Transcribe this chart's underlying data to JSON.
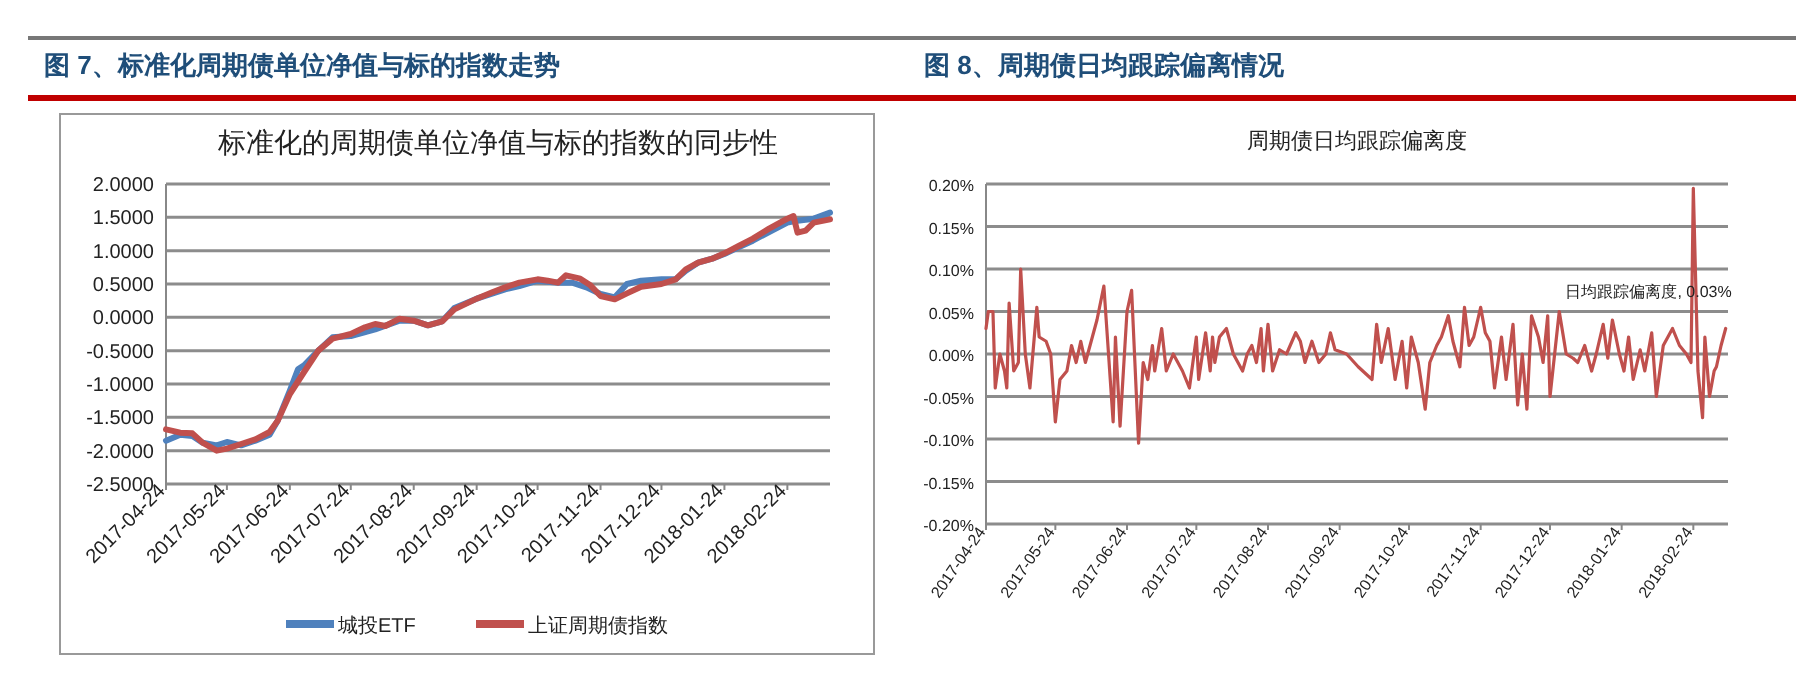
{
  "chart_data": [
    {
      "type": "line",
      "title": "图 7、标准化周期债单位净值与标的指数走势",
      "subtitle": "标准化的周期债单位净值与标的指数的同步性",
      "xlim": [
        "2017-04-24",
        "2018-03-17"
      ],
      "ylim": [
        -2.5,
        2.0
      ],
      "xticks": [
        "2017-04-24",
        "2017-05-24",
        "2017-06-24",
        "2017-07-24",
        "2017-08-24",
        "2017-09-24",
        "2017-10-24",
        "2017-11-24",
        "2017-12-24",
        "2018-01-24",
        "2018-02-24"
      ],
      "yticks": [
        {
          "value": 2.0,
          "label": "2.0000"
        },
        {
          "value": 1.5,
          "label": "1.5000"
        },
        {
          "value": 1.0,
          "label": "1.0000"
        },
        {
          "value": 0.5,
          "label": "0.5000"
        },
        {
          "value": 0,
          "label": "0.0000"
        },
        {
          "value": -0.5,
          "label": "-0.5000"
        },
        {
          "value": -1.0,
          "label": "-1.0000"
        },
        {
          "value": -1.5,
          "label": "-1.5000"
        },
        {
          "value": -2.0,
          "label": "-2.0000"
        },
        {
          "value": -2.5,
          "label": "-2.5000"
        }
      ],
      "grid": "y",
      "legend": "bottom",
      "series": [
        {
          "name": "城投ETF",
          "color": "#4f81bd",
          "x": [
            "2017-04-24",
            "2017-05-01",
            "2017-05-07",
            "2017-05-12",
            "2017-05-19",
            "2017-05-24",
            "2017-05-31",
            "2017-06-07",
            "2017-06-14",
            "2017-06-18",
            "2017-06-24",
            "2017-06-28",
            "2017-07-01",
            "2017-07-08",
            "2017-07-15",
            "2017-07-24",
            "2017-08-05",
            "2017-08-17",
            "2017-08-24",
            "2017-08-31",
            "2017-09-07",
            "2017-09-13",
            "2017-09-24",
            "2017-10-08",
            "2017-10-15",
            "2017-10-24",
            "2017-11-03",
            "2017-11-10",
            "2017-11-17",
            "2017-11-24",
            "2017-12-01",
            "2017-12-07",
            "2017-12-14",
            "2017-12-24",
            "2017-12-31",
            "2018-01-05",
            "2018-01-11",
            "2018-01-18",
            "2018-01-24",
            "2018-01-31",
            "2018-02-07",
            "2018-02-15",
            "2018-02-24",
            "2018-03-01",
            "2018-03-09",
            "2018-03-17"
          ],
          "values": [
            -1.85,
            -1.76,
            -1.78,
            -1.88,
            -1.92,
            -1.87,
            -1.92,
            -1.85,
            -1.76,
            -1.55,
            -1.1,
            -0.78,
            -0.72,
            -0.5,
            -0.3,
            -0.28,
            -0.18,
            -0.05,
            -0.05,
            -0.12,
            -0.06,
            0.14,
            0.28,
            0.42,
            0.47,
            0.55,
            0.52,
            0.52,
            0.45,
            0.35,
            0.3,
            0.5,
            0.55,
            0.57,
            0.57,
            0.7,
            0.82,
            0.88,
            0.95,
            1.05,
            1.15,
            1.28,
            1.42,
            1.45,
            1.48,
            1.57
          ]
        },
        {
          "name": "上证周期债指数",
          "color": "#c0504d",
          "x": [
            "2017-04-24",
            "2017-05-01",
            "2017-05-07",
            "2017-05-12",
            "2017-05-19",
            "2017-05-24",
            "2017-05-31",
            "2017-06-07",
            "2017-06-14",
            "2017-06-18",
            "2017-06-24",
            "2017-07-01",
            "2017-07-08",
            "2017-07-15",
            "2017-07-24",
            "2017-07-31",
            "2017-08-05",
            "2017-08-10",
            "2017-08-17",
            "2017-08-24",
            "2017-08-31",
            "2017-09-07",
            "2017-09-13",
            "2017-09-24",
            "2017-10-02",
            "2017-10-08",
            "2017-10-15",
            "2017-10-24",
            "2017-10-29",
            "2017-11-03",
            "2017-11-07",
            "2017-11-14",
            "2017-11-19",
            "2017-11-24",
            "2017-12-01",
            "2017-12-07",
            "2017-12-14",
            "2017-12-24",
            "2017-12-31",
            "2018-01-05",
            "2018-01-11",
            "2018-01-18",
            "2018-01-24",
            "2018-01-31",
            "2018-02-07",
            "2018-02-15",
            "2018-02-24",
            "2018-02-27",
            "2018-03-01",
            "2018-03-05",
            "2018-03-09",
            "2018-03-17"
          ],
          "values": [
            -1.68,
            -1.73,
            -1.74,
            -1.88,
            -2.0,
            -1.97,
            -1.9,
            -1.83,
            -1.72,
            -1.55,
            -1.15,
            -0.82,
            -0.5,
            -0.32,
            -0.25,
            -0.15,
            -0.1,
            -0.13,
            -0.02,
            -0.05,
            -0.12,
            -0.06,
            0.12,
            0.28,
            0.38,
            0.45,
            0.52,
            0.57,
            0.55,
            0.52,
            0.63,
            0.58,
            0.48,
            0.32,
            0.27,
            0.36,
            0.46,
            0.5,
            0.57,
            0.72,
            0.82,
            0.88,
            0.96,
            1.07,
            1.18,
            1.33,
            1.48,
            1.52,
            1.27,
            1.3,
            1.42,
            1.47
          ]
        }
      ]
    },
    {
      "type": "line",
      "title": "图 8、周期债日均跟踪偏离情况",
      "subtitle": "周期债日均跟踪偏离度",
      "xlim": [
        "2017-04-24",
        "2018-03-11"
      ],
      "ylim": [
        -0.2,
        0.2
      ],
      "xticks": [
        "2017-04-24",
        "2017-05-24",
        "2017-06-24",
        "2017-07-24",
        "2017-08-24",
        "2017-09-24",
        "2017-10-24",
        "2017-11-24",
        "2017-12-24",
        "2018-01-24",
        "2018-02-24"
      ],
      "yticks": [
        {
          "value": 0.2,
          "label": "0.20%"
        },
        {
          "value": 0.15,
          "label": "0.15%"
        },
        {
          "value": 0.1,
          "label": "0.10%"
        },
        {
          "value": 0.05,
          "label": "0.05%"
        },
        {
          "value": 0,
          "label": "0.00%"
        },
        {
          "value": -0.05,
          "label": "-0.05%"
        },
        {
          "value": -0.1,
          "label": "-0.10%"
        },
        {
          "value": -0.15,
          "label": "-0.15%"
        },
        {
          "value": -0.2,
          "label": "-0.20%"
        }
      ],
      "grid": "y",
      "annotations": [
        {
          "text": "日均跟踪偏离度, 0.03%",
          "x": "2018-03-10",
          "y": 0.03
        }
      ],
      "series": [
        {
          "color": "#c0504d",
          "x": [
            "2017-04-24",
            "2017-04-25",
            "2017-04-27",
            "2017-04-28",
            "2017-04-30",
            "2017-05-02",
            "2017-05-03",
            "2017-05-04",
            "2017-05-06",
            "2017-05-08",
            "2017-05-09",
            "2017-05-11",
            "2017-05-13",
            "2017-05-16",
            "2017-05-17",
            "2017-05-20",
            "2017-05-22",
            "2017-05-24",
            "2017-05-26",
            "2017-05-29",
            "2017-05-31",
            "2017-06-02",
            "2017-06-04",
            "2017-06-06",
            "2017-06-09",
            "2017-06-11",
            "2017-06-14",
            "2017-06-16",
            "2017-06-18",
            "2017-06-19",
            "2017-06-21",
            "2017-06-24",
            "2017-06-26",
            "2017-06-29",
            "2017-07-01",
            "2017-07-03",
            "2017-07-05",
            "2017-07-06",
            "2017-07-09",
            "2017-07-11",
            "2017-07-14",
            "2017-07-18",
            "2017-07-21",
            "2017-07-24",
            "2017-07-25",
            "2017-07-28",
            "2017-07-30",
            "2017-07-31",
            "2017-08-01",
            "2017-08-03",
            "2017-08-06",
            "2017-08-09",
            "2017-08-13",
            "2017-08-15",
            "2017-08-17",
            "2017-08-19",
            "2017-08-21",
            "2017-08-22",
            "2017-08-24",
            "2017-08-26",
            "2017-08-29",
            "2017-09-01",
            "2017-09-05",
            "2017-09-07",
            "2017-09-09",
            "2017-09-12",
            "2017-09-15",
            "2017-09-18",
            "2017-09-20",
            "2017-09-22",
            "2017-09-27",
            "2017-10-02",
            "2017-10-08",
            "2017-10-10",
            "2017-10-12",
            "2017-10-15",
            "2017-10-18",
            "2017-10-21",
            "2017-10-23",
            "2017-10-25",
            "2017-10-28",
            "2017-10-31",
            "2017-11-02",
            "2017-11-05",
            "2017-11-07",
            "2017-11-10",
            "2017-11-12",
            "2017-11-15",
            "2017-11-17",
            "2017-11-19",
            "2017-11-21",
            "2017-11-24",
            "2017-11-26",
            "2017-11-28",
            "2017-11-30",
            "2017-12-03",
            "2017-12-05",
            "2017-12-08",
            "2017-12-10",
            "2017-12-12",
            "2017-12-14",
            "2017-12-16",
            "2017-12-19",
            "2017-12-21",
            "2017-12-23",
            "2017-12-24",
            "2017-12-26",
            "2017-12-28",
            "2017-12-31",
            "2018-01-03",
            "2018-01-05",
            "2018-01-08",
            "2018-01-11",
            "2018-01-13",
            "2018-01-16",
            "2018-01-18",
            "2018-01-20",
            "2018-01-23",
            "2018-01-25",
            "2018-01-27",
            "2018-01-29",
            "2018-02-01",
            "2018-02-03",
            "2018-02-06",
            "2018-02-08",
            "2018-02-11",
            "2018-02-15",
            "2018-02-18",
            "2018-02-21",
            "2018-02-23",
            "2018-02-24",
            "2018-02-26",
            "2018-02-28",
            "2018-03-01",
            "2018-03-03",
            "2018-03-05",
            "2018-03-06",
            "2018-03-08",
            "2018-03-10"
          ],
          "values": [
            0.03,
            0.05,
            0.05,
            -0.04,
            0.0,
            -0.02,
            -0.04,
            0.06,
            -0.02,
            -0.01,
            0.1,
            0.0,
            -0.04,
            0.055,
            0.02,
            0.015,
            0.0,
            -0.08,
            -0.03,
            -0.02,
            0.01,
            -0.01,
            0.015,
            -0.01,
            0.02,
            0.04,
            0.08,
            0.0,
            -0.08,
            0.02,
            -0.085,
            0.05,
            0.075,
            -0.105,
            -0.01,
            -0.03,
            0.01,
            -0.02,
            0.03,
            -0.02,
            0.0,
            -0.02,
            -0.04,
            0.02,
            -0.03,
            0.025,
            -0.02,
            0.02,
            -0.01,
            0.02,
            0.03,
            0.0,
            -0.02,
            0.0,
            0.01,
            -0.01,
            0.03,
            -0.02,
            0.035,
            -0.02,
            0.005,
            0.0,
            0.025,
            0.015,
            -0.01,
            0.015,
            -0.01,
            0.0,
            0.025,
            0.005,
            0.0,
            -0.015,
            -0.03,
            0.035,
            -0.01,
            0.03,
            -0.03,
            0.015,
            -0.04,
            0.02,
            -0.01,
            -0.065,
            -0.01,
            0.01,
            0.02,
            0.045,
            0.015,
            -0.015,
            0.055,
            0.01,
            0.02,
            0.055,
            0.025,
            0.015,
            -0.04,
            0.02,
            -0.03,
            0.035,
            -0.06,
            0.0,
            -0.065,
            0.045,
            0.02,
            -0.01,
            0.045,
            -0.05,
            0.0,
            0.05,
            0.0,
            -0.005,
            -0.01,
            0.01,
            -0.02,
            0.0,
            0.035,
            -0.005,
            0.04,
            0.0,
            -0.02,
            0.02,
            -0.03,
            0.005,
            -0.02,
            0.025,
            -0.05,
            0.01,
            0.03,
            0.01,
            0.0,
            -0.01,
            0.195,
            -0.02,
            -0.075,
            0.02,
            -0.05,
            -0.02,
            -0.015,
            0.01,
            0.03
          ]
        }
      ]
    }
  ]
}
